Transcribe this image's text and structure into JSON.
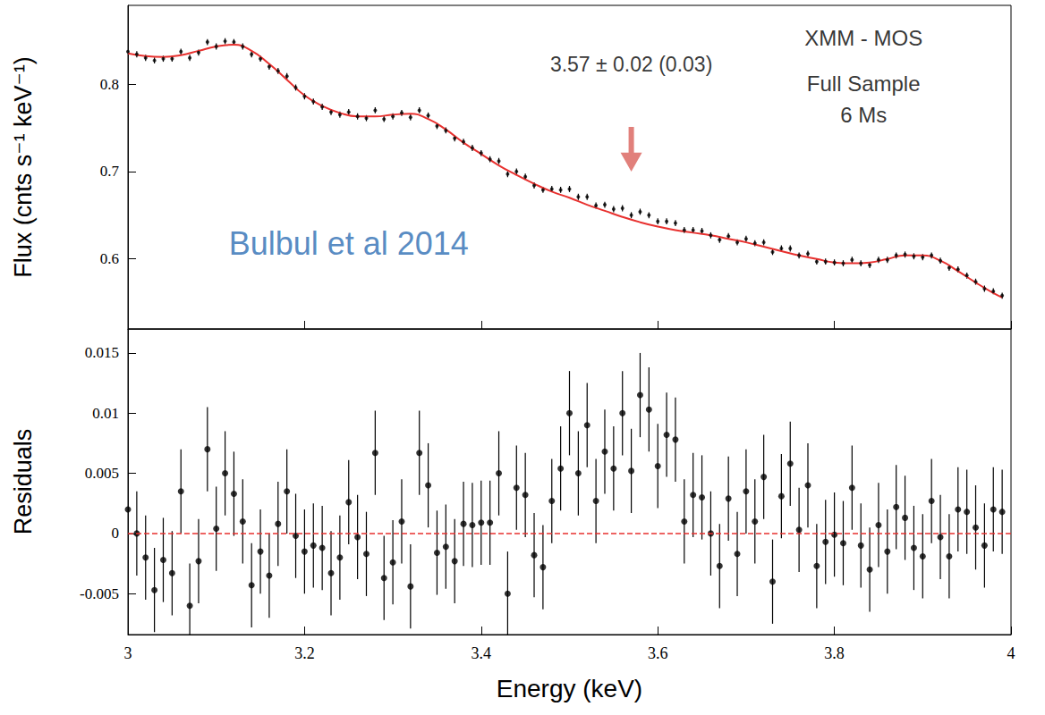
{
  "chart_data": [
    {
      "type": "scatter",
      "y_label": "Flux (cnts s⁻¹ keV⁻¹)",
      "xlim": [
        3,
        4
      ],
      "xticks": [
        3,
        3.2,
        3.4,
        3.6,
        3.8,
        4
      ],
      "ylim": [
        0.52,
        0.89
      ],
      "yticks": [
        0.6,
        0.7,
        0.8
      ],
      "tick_labels": "y",
      "grid": false,
      "x": [
        3,
        3.01,
        3.02,
        3.03,
        3.04,
        3.05,
        3.06,
        3.07,
        3.08,
        3.09,
        3.1,
        3.11,
        3.12,
        3.13,
        3.14,
        3.15,
        3.16,
        3.17,
        3.18,
        3.19,
        3.2,
        3.21,
        3.22,
        3.23,
        3.24,
        3.25,
        3.26,
        3.27,
        3.28,
        3.29,
        3.3,
        3.31,
        3.32,
        3.33,
        3.34,
        3.35,
        3.36,
        3.37,
        3.38,
        3.39,
        3.4,
        3.41,
        3.42,
        3.43,
        3.44,
        3.45,
        3.46,
        3.47,
        3.48,
        3.49,
        3.5,
        3.51,
        3.52,
        3.53,
        3.54,
        3.55,
        3.56,
        3.57,
        3.58,
        3.59,
        3.6,
        3.61,
        3.62,
        3.63,
        3.64,
        3.65,
        3.66,
        3.67,
        3.68,
        3.69,
        3.7,
        3.71,
        3.72,
        3.73,
        3.74,
        3.75,
        3.76,
        3.77,
        3.78,
        3.79,
        3.8,
        3.81,
        3.82,
        3.83,
        3.84,
        3.85,
        3.86,
        3.87,
        3.88,
        3.89,
        3.9,
        3.91,
        3.92,
        3.93,
        3.94,
        3.95,
        3.96,
        3.97,
        3.98,
        3.99
      ],
      "series": [
        {
          "type": "scatter",
          "marker": "circle",
          "color": "#000000",
          "error": 0.0035,
          "values": [
            0.837,
            0.834,
            0.83,
            0.827,
            0.829,
            0.829,
            0.837,
            0.83,
            0.836,
            0.848,
            0.843,
            0.849,
            0.848,
            0.843,
            0.834,
            0.829,
            0.82,
            0.815,
            0.809,
            0.796,
            0.786,
            0.78,
            0.774,
            0.768,
            0.765,
            0.768,
            0.763,
            0.761,
            0.77,
            0.76,
            0.763,
            0.767,
            0.762,
            0.77,
            0.764,
            0.752,
            0.747,
            0.738,
            0.734,
            0.727,
            0.721,
            0.714,
            0.712,
            0.697,
            0.7,
            0.694,
            0.684,
            0.679,
            0.68,
            0.679,
            0.68,
            0.671,
            0.671,
            0.661,
            0.662,
            0.657,
            0.658,
            0.65,
            0.654,
            0.65,
            0.643,
            0.643,
            0.641,
            0.633,
            0.633,
            0.632,
            0.627,
            0.622,
            0.626,
            0.619,
            0.623,
            0.618,
            0.619,
            0.608,
            0.612,
            0.612,
            0.604,
            0.606,
            0.597,
            0.597,
            0.596,
            0.595,
            0.599,
            0.595,
            0.593,
            0.599,
            0.599,
            0.604,
            0.605,
            0.603,
            0.602,
            0.604,
            0.598,
            0.59,
            0.588,
            0.581,
            0.574,
            0.566,
            0.563,
            0.558
          ]
        },
        {
          "type": "line",
          "color": "#e8312f",
          "line_style": "solid",
          "x": [
            3,
            3.02,
            3.04,
            3.06,
            3.08,
            3.1,
            3.12,
            3.14,
            3.16,
            3.18,
            3.2,
            3.22,
            3.24,
            3.26,
            3.28,
            3.3,
            3.32,
            3.34,
            3.36,
            3.38,
            3.4,
            3.42,
            3.44,
            3.46,
            3.48,
            3.5,
            3.52,
            3.54,
            3.56,
            3.58,
            3.6,
            3.62,
            3.64,
            3.66,
            3.68,
            3.7,
            3.72,
            3.74,
            3.76,
            3.78,
            3.8,
            3.82,
            3.84,
            3.86,
            3.88,
            3.9,
            3.92,
            3.94,
            3.96,
            3.98,
            3.99
          ],
          "values": [
            0.835,
            0.832,
            0.831,
            0.833,
            0.838,
            0.843,
            0.845,
            0.838,
            0.823,
            0.805,
            0.787,
            0.775,
            0.767,
            0.763,
            0.763,
            0.765,
            0.766,
            0.76,
            0.748,
            0.733,
            0.72,
            0.707,
            0.696,
            0.686,
            0.677,
            0.67,
            0.662,
            0.655,
            0.648,
            0.642,
            0.637,
            0.633,
            0.63,
            0.627,
            0.623,
            0.619,
            0.614,
            0.609,
            0.604,
            0.6,
            0.596,
            0.595,
            0.596,
            0.6,
            0.604,
            0.604,
            0.598,
            0.586,
            0.573,
            0.561,
            0.556
          ]
        }
      ],
      "annotations": [
        {
          "text": "3.57 ± 0.02 (0.03)",
          "x": 3.57,
          "y": 0.7,
          "marker": "arrow",
          "color": "#d9605a"
        }
      ],
      "texts": [
        {
          "text": "XMM - MOS",
          "x": 3.833,
          "y": 0.853
        },
        {
          "text": "Full Sample",
          "x": 3.833,
          "y": 0.801
        },
        {
          "text": "6 Ms",
          "x": 3.833,
          "y": 0.765
        }
      ],
      "source": {
        "text": "Bulbul et al 2014",
        "x": 3.25,
        "y": 0.618,
        "color": "#2b6cb3"
      }
    },
    {
      "type": "scatter",
      "y_label": "Residuals",
      "x_label": "Energy (keV)",
      "xlim": [
        3,
        4
      ],
      "xticks": [
        3,
        3.2,
        3.4,
        3.6,
        3.8,
        4
      ],
      "ylim": [
        -0.0084,
        0.017
      ],
      "yticks": [
        -0.005,
        0,
        0.005,
        0.01,
        0.015
      ],
      "tick_labels": true,
      "grid": false,
      "x": [
        3,
        3.01,
        3.02,
        3.03,
        3.04,
        3.05,
        3.06,
        3.07,
        3.08,
        3.09,
        3.1,
        3.11,
        3.12,
        3.13,
        3.14,
        3.15,
        3.16,
        3.17,
        3.18,
        3.19,
        3.2,
        3.21,
        3.22,
        3.23,
        3.24,
        3.25,
        3.26,
        3.27,
        3.28,
        3.29,
        3.3,
        3.31,
        3.32,
        3.33,
        3.34,
        3.35,
        3.36,
        3.37,
        3.38,
        3.39,
        3.4,
        3.41,
        3.42,
        3.43,
        3.44,
        3.45,
        3.46,
        3.47,
        3.48,
        3.49,
        3.5,
        3.51,
        3.52,
        3.53,
        3.54,
        3.55,
        3.56,
        3.57,
        3.58,
        3.59,
        3.6,
        3.61,
        3.62,
        3.63,
        3.64,
        3.65,
        3.66,
        3.67,
        3.68,
        3.69,
        3.7,
        3.71,
        3.72,
        3.73,
        3.74,
        3.75,
        3.76,
        3.77,
        3.78,
        3.79,
        3.8,
        3.81,
        3.82,
        3.83,
        3.84,
        3.85,
        3.86,
        3.87,
        3.88,
        3.89,
        3.9,
        3.91,
        3.92,
        3.93,
        3.94,
        3.95,
        3.96,
        3.97,
        3.98,
        3.99
      ],
      "series": [
        {
          "type": "scatter",
          "marker": "circle",
          "color": "#000000",
          "error": 0.0035,
          "values": [
            0.002,
            0,
            -0.002,
            -0.0047,
            -0.0022,
            -0.0033,
            0.0035,
            -0.006,
            -0.0023,
            0.007,
            0.0004,
            0.005,
            0.0033,
            0.001,
            -0.0043,
            -0.0015,
            -0.0035,
            0.0008,
            0.0035,
            -0.0002,
            -0.0015,
            -0.001,
            -0.0012,
            -0.0033,
            -0.002,
            0.0026,
            -0.0003,
            -0.0017,
            0.0067,
            -0.0037,
            -0.0024,
            0.001,
            -0.0044,
            0.0067,
            0.004,
            -0.0016,
            -0.0011,
            -0.0023,
            0.0008,
            0.0007,
            0.0009,
            0.0009,
            0.005,
            -0.005,
            0.0038,
            0.0032,
            -0.0018,
            -0.0028,
            0.0027,
            0.0054,
            0.01,
            0.005,
            0.009,
            0.0027,
            0.0068,
            0.0054,
            0.01,
            0.0052,
            0.0115,
            0.0103,
            0.0056,
            0.0082,
            0.0078,
            0.001,
            0.0032,
            0.003,
            0,
            -0.0027,
            0.0029,
            -0.0017,
            0.0035,
            0.001,
            0.0047,
            -0.004,
            0.0031,
            0.0058,
            0.0003,
            0.004,
            -0.0027,
            -0.0007,
            -0.0001,
            -0.0008,
            0.0038,
            -0.001,
            -0.003,
            0.0007,
            -0.0015,
            0.0022,
            0.0013,
            -0.0012,
            -0.0019,
            0.0027,
            -0.0003,
            -0.0019,
            0.002,
            0.0018,
            0.0005,
            -0.001,
            0.002,
            0.0018
          ]
        }
      ],
      "hline": {
        "value": 0,
        "color": "#e8312f",
        "line_style": "dashed"
      }
    }
  ]
}
